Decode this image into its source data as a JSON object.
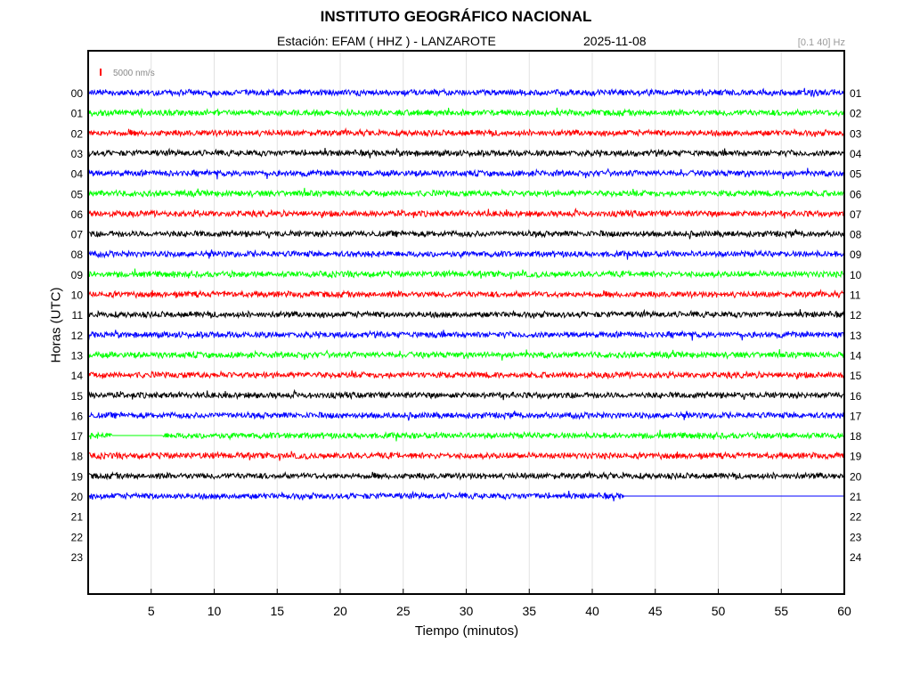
{
  "header": {
    "title": "INSTITUTO GEOGRÁFICO NACIONAL",
    "station": "Estación:  EFAM ( HHZ ) - LANZAROTE",
    "date": "2025-11-08",
    "filter": "[0.1 40] Hz"
  },
  "chart_data": {
    "type": "line",
    "title": "INSTITUTO GEOGRÁFICO NACIONAL",
    "subtitle": "Estación:  EFAM ( HHZ ) - LANZAROTE   2025-11-08",
    "xlabel": "Tiempo (minutos)",
    "ylabel": "Horas (UTC)",
    "xlim": [
      0,
      60
    ],
    "x_ticks": [
      5,
      10,
      15,
      20,
      25,
      30,
      35,
      40,
      45,
      50,
      55,
      60
    ],
    "grid": "vertical",
    "scale_legend": "5000 nm/s",
    "scale_color": "#ff0000",
    "color_cycle": [
      "#0000ff",
      "#00ff00",
      "#ff0000",
      "#000000"
    ],
    "left_labels": [
      "00",
      "01",
      "02",
      "03",
      "04",
      "05",
      "06",
      "07",
      "08",
      "09",
      "10",
      "11",
      "12",
      "13",
      "14",
      "15",
      "16",
      "17",
      "18",
      "19",
      "20",
      "21",
      "22",
      "23"
    ],
    "right_labels": [
      "01",
      "02",
      "03",
      "04",
      "05",
      "06",
      "07",
      "08",
      "09",
      "10",
      "11",
      "12",
      "13",
      "14",
      "15",
      "16",
      "17",
      "18",
      "19",
      "20",
      "21",
      "22",
      "23",
      "24"
    ],
    "traces": [
      {
        "hour": "00",
        "color": "#0000ff",
        "segments": [
          [
            0,
            60
          ]
        ]
      },
      {
        "hour": "01",
        "color": "#00ff00",
        "segments": [
          [
            0,
            60
          ]
        ]
      },
      {
        "hour": "02",
        "color": "#ff0000",
        "segments": [
          [
            0,
            60
          ]
        ]
      },
      {
        "hour": "03",
        "color": "#000000",
        "segments": [
          [
            0,
            60
          ]
        ]
      },
      {
        "hour": "04",
        "color": "#0000ff",
        "segments": [
          [
            0,
            60
          ]
        ]
      },
      {
        "hour": "05",
        "color": "#00ff00",
        "segments": [
          [
            0,
            60
          ]
        ]
      },
      {
        "hour": "06",
        "color": "#ff0000",
        "segments": [
          [
            0,
            60
          ]
        ]
      },
      {
        "hour": "07",
        "color": "#000000",
        "segments": [
          [
            0,
            60
          ]
        ]
      },
      {
        "hour": "08",
        "color": "#0000ff",
        "segments": [
          [
            0,
            60
          ]
        ]
      },
      {
        "hour": "09",
        "color": "#00ff00",
        "segments": [
          [
            0,
            60
          ]
        ]
      },
      {
        "hour": "10",
        "color": "#ff0000",
        "segments": [
          [
            0,
            60
          ]
        ]
      },
      {
        "hour": "11",
        "color": "#000000",
        "segments": [
          [
            0,
            60
          ]
        ]
      },
      {
        "hour": "12",
        "color": "#0000ff",
        "segments": [
          [
            0,
            60
          ]
        ]
      },
      {
        "hour": "13",
        "color": "#00ff00",
        "segments": [
          [
            0,
            60
          ]
        ]
      },
      {
        "hour": "14",
        "color": "#ff0000",
        "segments": [
          [
            0,
            60
          ]
        ]
      },
      {
        "hour": "15",
        "color": "#000000",
        "segments": [
          [
            0,
            60
          ]
        ]
      },
      {
        "hour": "16",
        "color": "#0000ff",
        "segments": [
          [
            0,
            60
          ]
        ]
      },
      {
        "hour": "17",
        "color": "#00ff00",
        "segments": [
          [
            0,
            1.9
          ],
          [
            5.9,
            60
          ]
        ],
        "flat": [
          [
            1.9,
            5.9
          ]
        ]
      },
      {
        "hour": "18",
        "color": "#ff0000",
        "segments": [
          [
            0,
            60
          ]
        ]
      },
      {
        "hour": "19",
        "color": "#000000",
        "segments": [
          [
            0,
            60
          ]
        ]
      },
      {
        "hour": "20",
        "color": "#0000ff",
        "segments": [
          [
            0,
            42.5
          ]
        ],
        "flat": [
          [
            42.5,
            60
          ]
        ]
      }
    ]
  }
}
